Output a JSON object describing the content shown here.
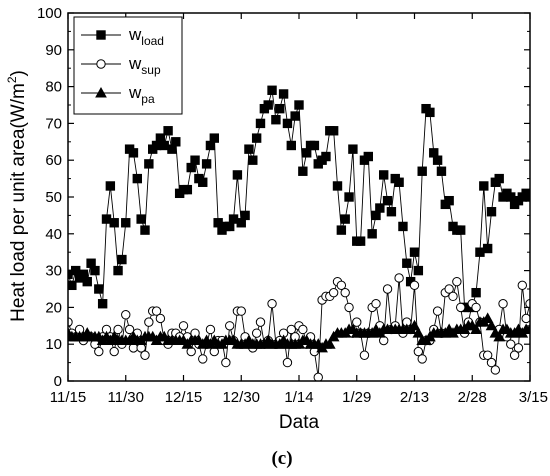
{
  "chart_data": {
    "type": "line",
    "xlabel": "Data",
    "ylabel_main": "Heat load per unit area(W/m",
    "ylabel_sup": "2",
    "ylabel_end": ")",
    "caption": "(c)",
    "ylim": [
      0,
      100
    ],
    "yticks": [
      0,
      10,
      20,
      30,
      40,
      50,
      60,
      70,
      80,
      90,
      100
    ],
    "xlim": [
      0,
      120
    ],
    "xticks": [
      {
        "pos": 0,
        "label": "11/15"
      },
      {
        "pos": 15,
        "label": "11/30"
      },
      {
        "pos": 30,
        "label": "12/15"
      },
      {
        "pos": 45,
        "label": "12/30"
      },
      {
        "pos": 60,
        "label": "1/14"
      },
      {
        "pos": 75,
        "label": "1/29"
      },
      {
        "pos": 90,
        "label": "2/13"
      },
      {
        "pos": 105,
        "label": "2/28"
      },
      {
        "pos": 120,
        "label": "3/15"
      }
    ],
    "grid": false,
    "legend_position": "top-left",
    "series": [
      {
        "name_main": "w",
        "name_sub": "load",
        "marker": "square",
        "fill": "#000000",
        "values": [
          29,
          26,
          30,
          28,
          29,
          27,
          32,
          30,
          25,
          21,
          44,
          53,
          43,
          30,
          33,
          43,
          63,
          62,
          55,
          44,
          41,
          59,
          63,
          64,
          66,
          64,
          68,
          63,
          65,
          51,
          52,
          52,
          58,
          60,
          55,
          54,
          59,
          64,
          66,
          43,
          41,
          42,
          42,
          44,
          56,
          43,
          45,
          63,
          60,
          66,
          70,
          74,
          75,
          79,
          71,
          74,
          78,
          70,
          64,
          72,
          75,
          57,
          62,
          64,
          64,
          59,
          60,
          61,
          68,
          68,
          53,
          41,
          44,
          50,
          63,
          38,
          38,
          60,
          61,
          40,
          45,
          47,
          56,
          49,
          46,
          55,
          54,
          42,
          32,
          27,
          35,
          30,
          57,
          74,
          73,
          62,
          60,
          57,
          48,
          49,
          42,
          41,
          41,
          20,
          20,
          20,
          24,
          35,
          53,
          36,
          46,
          54,
          55,
          50,
          51,
          50,
          48,
          49,
          50,
          51,
          50
        ]
      },
      {
        "name_main": "w",
        "name_sub": "sup",
        "marker": "circle",
        "fill": "#ffffff",
        "values": [
          16,
          13,
          12,
          14,
          11,
          12,
          12,
          10,
          8,
          12,
          14,
          12,
          8,
          14,
          10,
          18,
          14,
          9,
          13,
          9,
          7,
          16,
          19,
          19,
          17,
          11,
          10,
          13,
          13,
          12,
          15,
          12,
          8,
          13,
          10,
          6,
          10,
          14,
          8,
          11,
          11,
          5,
          15,
          11,
          19,
          19,
          12,
          10,
          9,
          13,
          16,
          10,
          11,
          21,
          10,
          11,
          13,
          5,
          14,
          12,
          15,
          14,
          10,
          12,
          8,
          1,
          22,
          23,
          23,
          24,
          27,
          26,
          24,
          20,
          13,
          16,
          13,
          7,
          13,
          20,
          21,
          15,
          11,
          25,
          14,
          15,
          28,
          13,
          16,
          14,
          26,
          8,
          6,
          11,
          11,
          14,
          19,
          13,
          24,
          25,
          23,
          27,
          20,
          13,
          16,
          21,
          20,
          16,
          7,
          7,
          5,
          3,
          14,
          21,
          12,
          10,
          7,
          9,
          26,
          17,
          21
        ]
      },
      {
        "name_main": "w",
        "name_sub": "pa",
        "marker": "triangle",
        "fill": "#000000",
        "values": [
          13,
          12,
          12,
          12,
          12,
          13,
          12,
          12,
          12,
          11,
          12,
          11,
          12,
          11,
          11,
          11,
          11,
          12,
          11,
          11,
          12,
          12,
          12,
          11,
          12,
          12,
          11,
          11,
          11,
          11,
          11,
          10,
          11,
          11,
          11,
          10,
          11,
          10,
          11,
          10,
          10,
          11,
          11,
          11,
          10,
          10,
          10,
          11,
          10,
          10,
          10,
          10,
          11,
          10,
          10,
          10,
          11,
          10,
          10,
          10,
          10,
          11,
          11,
          10,
          10,
          10,
          9,
          10,
          10,
          12,
          13,
          13,
          13,
          14,
          14,
          13,
          13,
          13,
          13,
          13,
          14,
          13,
          14,
          14,
          14,
          14,
          14,
          14,
          14,
          14,
          15,
          13,
          11,
          11,
          12,
          13,
          13,
          13,
          13,
          14,
          13,
          14,
          14,
          14,
          15,
          15,
          14,
          16,
          16,
          17,
          15,
          13,
          12,
          14,
          14,
          13,
          13,
          14,
          13,
          14,
          14
        ]
      }
    ]
  }
}
